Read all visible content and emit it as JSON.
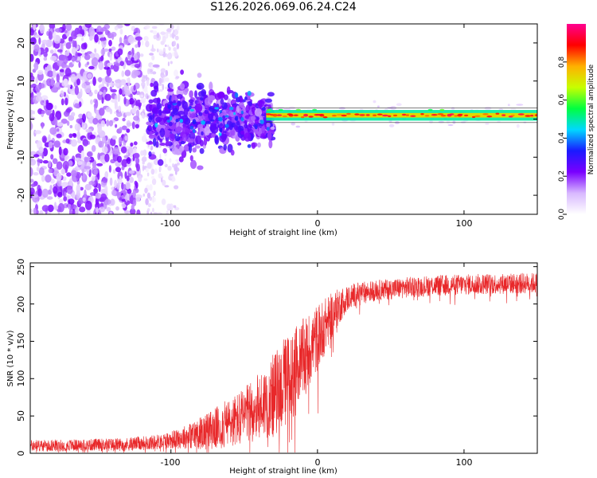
{
  "title": "S126.2026.069.06.24.C24",
  "chart_data": [
    {
      "type": "heatmap",
      "xlabel": "Height of straight line (km)",
      "ylabel": "Frequency (Hz)",
      "xlim": [
        -196,
        150
      ],
      "ylim": [
        -25,
        25
      ],
      "x_ticks": [
        -100,
        0,
        100
      ],
      "y_ticks": [
        -20,
        -10,
        0,
        10,
        20
      ],
      "x_tick_labels": [
        "-100",
        "0",
        "100"
      ],
      "y_tick_labels": [
        "-20",
        "-10",
        "0",
        "10",
        "20"
      ],
      "narrowband_line_frequency_hz": 1,
      "narrowband_line_start_km": -35,
      "colorbar": {
        "label": "Normalized spectral amplitude",
        "range": [
          0,
          1
        ],
        "ticks": [
          0.0,
          0.2,
          0.4,
          0.6,
          0.8
        ],
        "tick_labels": [
          "0.0",
          "0.2",
          "0.4",
          "0.6",
          "0.8"
        ],
        "colormap": [
          "#ffffff",
          "#d8b8ff",
          "#7a00ff",
          "#1a1aff",
          "#00d8ff",
          "#00ff40",
          "#c8ff00",
          "#ffb000",
          "#ff0000",
          "#ff0090"
        ]
      }
    },
    {
      "type": "line",
      "xlabel": "Height of straight line (km)",
      "ylabel": "SNR (10 * v/v)",
      "xlim": [
        -196,
        150
      ],
      "ylim": [
        0,
        255
      ],
      "x_ticks": [
        -100,
        0,
        100
      ],
      "y_ticks": [
        0,
        50,
        100,
        150,
        200,
        250
      ],
      "x_tick_labels": [
        "-100",
        "0",
        "100"
      ],
      "y_tick_labels": [
        "0",
        "50",
        "100",
        "150",
        "200",
        "250"
      ],
      "color": "#e8282a",
      "series": [
        {
          "name": "SNR",
          "x": [
            -196,
            -160,
            -130,
            -110,
            -100,
            -90,
            -80,
            -70,
            -60,
            -50,
            -40,
            -30,
            -25,
            -20,
            -15,
            -10,
            -5,
            0,
            5,
            10,
            15,
            20,
            25,
            30,
            40,
            50,
            60,
            80,
            100,
            120,
            150
          ],
          "y": [
            10,
            11,
            12,
            15,
            18,
            22,
            27,
            33,
            40,
            50,
            62,
            78,
            88,
            100,
            110,
            125,
            140,
            155,
            170,
            185,
            198,
            207,
            212,
            215,
            218,
            220,
            222,
            225,
            226,
            227,
            228
          ],
          "noise_amplitude": [
            8,
            8,
            9,
            10,
            12,
            16,
            22,
            28,
            34,
            38,
            45,
            55,
            60,
            62,
            60,
            55,
            50,
            45,
            38,
            30,
            24,
            18,
            16,
            15,
            14,
            14,
            14,
            14,
            14,
            14,
            14
          ]
        }
      ]
    }
  ]
}
